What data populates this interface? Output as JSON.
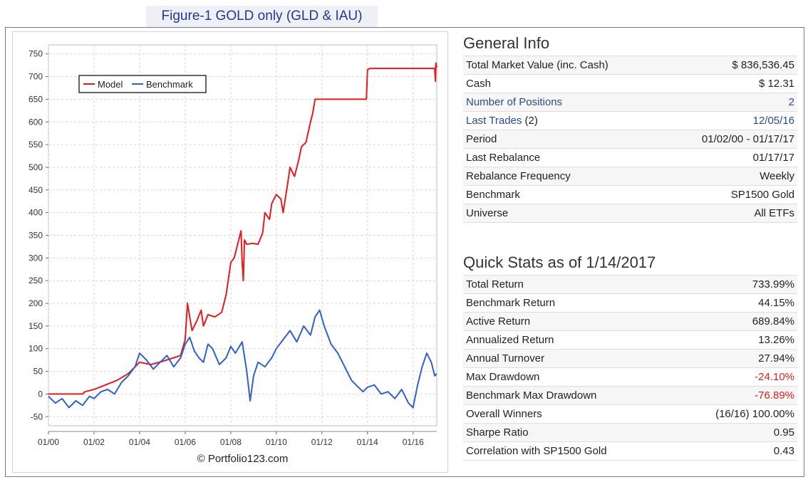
{
  "figure_title": "Figure-1 GOLD only (GLD & IAU)",
  "chart_data": {
    "type": "line",
    "xlabel": "",
    "ylabel": "",
    "x_range": [
      2000.0,
      2017.04
    ],
    "ylim": [
      -70,
      770
    ],
    "yticks": [
      -50,
      0,
      50,
      100,
      150,
      200,
      250,
      300,
      350,
      400,
      450,
      500,
      550,
      600,
      650,
      700,
      750
    ],
    "xticks": [
      {
        "x": 2000.0,
        "label": "01/00"
      },
      {
        "x": 2002.0,
        "label": "01/02"
      },
      {
        "x": 2004.0,
        "label": "01/04"
      },
      {
        "x": 2006.0,
        "label": "01/06"
      },
      {
        "x": 2008.0,
        "label": "01/08"
      },
      {
        "x": 2010.0,
        "label": "01/10"
      },
      {
        "x": 2012.0,
        "label": "01/12"
      },
      {
        "x": 2014.0,
        "label": "01/14"
      },
      {
        "x": 2016.0,
        "label": "01/16"
      }
    ],
    "grid": true,
    "legend_position": "top-left",
    "credit": "© Portfolio123.com",
    "series": [
      {
        "name": "Model",
        "color": "#e8191c",
        "x": [
          2000.0,
          2001.5,
          2001.6,
          2002.0,
          2002.5,
          2003.0,
          2003.5,
          2004.0,
          2004.5,
          2005.0,
          2005.5,
          2005.8,
          2006.0,
          2006.1,
          2006.3,
          2006.5,
          2006.7,
          2006.8,
          2007.0,
          2007.3,
          2007.6,
          2007.8,
          2008.0,
          2008.15,
          2008.3,
          2008.45,
          2008.5,
          2008.55,
          2008.6,
          2008.7,
          2008.9,
          2009.0,
          2009.2,
          2009.4,
          2009.5,
          2009.7,
          2009.8,
          2010.0,
          2010.2,
          2010.3,
          2010.5,
          2010.6,
          2010.8,
          2011.0,
          2011.1,
          2011.3,
          2011.5,
          2011.6,
          2011.7,
          2011.75,
          2012.0,
          2013.0,
          2013.9,
          2013.95,
          2014.0,
          2014.1,
          2015.0,
          2016.0,
          2016.95,
          2016.98,
          2017.0,
          2017.04
        ],
        "y": [
          0,
          0,
          5,
          10,
          20,
          30,
          45,
          70,
          65,
          72,
          80,
          85,
          120,
          200,
          140,
          160,
          185,
          150,
          175,
          170,
          180,
          220,
          290,
          300,
          330,
          360,
          290,
          250,
          340,
          330,
          332,
          332,
          330,
          355,
          400,
          385,
          420,
          440,
          430,
          400,
          465,
          500,
          480,
          520,
          545,
          555,
          600,
          620,
          650,
          650,
          650,
          650,
          650,
          650,
          715,
          718,
          718,
          718,
          718,
          690,
          730,
          720
        ]
      },
      {
        "name": "Benchmark",
        "color": "#3060c8",
        "x": [
          2000.0,
          2000.3,
          2000.6,
          2000.9,
          2001.2,
          2001.5,
          2001.8,
          2002.0,
          2002.3,
          2002.6,
          2002.9,
          2003.2,
          2003.5,
          2003.8,
          2004.0,
          2004.3,
          2004.6,
          2004.9,
          2005.2,
          2005.5,
          2005.8,
          2006.0,
          2006.2,
          2006.4,
          2006.6,
          2006.8,
          2007.0,
          2007.2,
          2007.5,
          2007.8,
          2008.0,
          2008.2,
          2008.5,
          2008.7,
          2008.85,
          2009.0,
          2009.2,
          2009.5,
          2009.8,
          2010.0,
          2010.3,
          2010.6,
          2010.9,
          2011.2,
          2011.5,
          2011.7,
          2011.9,
          2012.1,
          2012.4,
          2012.7,
          2013.0,
          2013.3,
          2013.5,
          2013.8,
          2014.0,
          2014.3,
          2014.6,
          2014.9,
          2015.2,
          2015.5,
          2015.8,
          2016.0,
          2016.2,
          2016.4,
          2016.6,
          2016.8,
          2016.95,
          2017.04
        ],
        "y": [
          -5,
          -20,
          -10,
          -30,
          -15,
          -25,
          -5,
          -10,
          5,
          10,
          0,
          25,
          40,
          60,
          90,
          75,
          55,
          70,
          85,
          60,
          80,
          110,
          125,
          95,
          80,
          70,
          110,
          100,
          65,
          80,
          105,
          90,
          115,
          50,
          -15,
          40,
          70,
          60,
          80,
          100,
          120,
          140,
          115,
          150,
          130,
          170,
          185,
          150,
          110,
          90,
          60,
          30,
          20,
          5,
          15,
          20,
          0,
          5,
          -10,
          10,
          -20,
          -30,
          20,
          60,
          90,
          70,
          40,
          45
        ]
      }
    ]
  },
  "general": {
    "title": "General Info",
    "rows": [
      {
        "label": "Total Market Value (inc. Cash)",
        "value": "$ 836,536.45"
      },
      {
        "label": "Cash",
        "value": "$ 12.31"
      },
      {
        "label": "Number of Positions",
        "value": "2"
      },
      {
        "label": "Last Trades",
        "label_suffix": " (2)",
        "value": "12/05/16"
      },
      {
        "label": "Period",
        "value": "01/02/00 - 01/17/17"
      },
      {
        "label": "Last Rebalance",
        "value": "01/17/17"
      },
      {
        "label": "Rebalance Frequency",
        "value": "Weekly"
      },
      {
        "label": "Benchmark",
        "value": "SP1500 Gold"
      },
      {
        "label": "Universe",
        "value": "All ETFs"
      }
    ]
  },
  "stats": {
    "title": "Quick Stats as of 1/14/2017",
    "rows": [
      {
        "label": "Total Return",
        "value": "733.99%"
      },
      {
        "label": "Benchmark Return",
        "value": "44.15%"
      },
      {
        "label": "Active Return",
        "value": "689.84%"
      },
      {
        "label": "Annualized Return",
        "value": "13.26%"
      },
      {
        "label": "Annual Turnover",
        "value": "27.94%"
      },
      {
        "label": "Max Drawdown",
        "value": "-24.10%"
      },
      {
        "label": "Benchmark Max Drawdown",
        "value": "-76.89%"
      },
      {
        "label": "Overall Winners",
        "value": "(16/16) 100.00%"
      },
      {
        "label": "Sharpe Ratio",
        "value": "0.95"
      },
      {
        "label": "Correlation with SP1500 Gold",
        "value": "0.43"
      }
    ]
  },
  "colors": {
    "link": "#2a4b8c",
    "negative": "#e0201b",
    "model": "#e8191c",
    "benchmark": "#3060c8"
  }
}
